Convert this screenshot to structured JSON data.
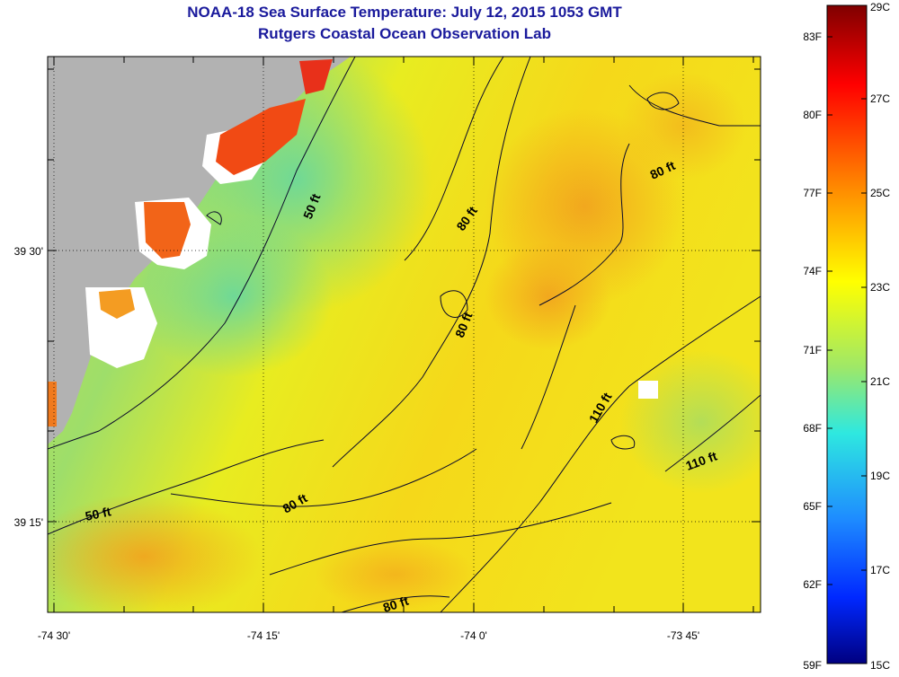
{
  "title": "NOAA-18 Sea Surface Temperature:  July 12, 2015 1053 GMT",
  "subtitle": "Rutgers Coastal Ocean Observation Lab",
  "map": {
    "lat_labels": [
      "39 30'",
      "39 15'"
    ],
    "lon_labels": [
      "-74 30'",
      "-74 15'",
      "-74 0'",
      "-73 45'"
    ],
    "contour_labels": [
      "50 ft",
      "80 ft",
      "80 ft",
      "80 ft",
      "80 ft",
      "110 ft",
      "110 ft",
      "50 ft",
      "80 ft"
    ],
    "land_color": "#b2b2b2"
  },
  "colorbar": {
    "fahrenheit_labels": [
      "83F",
      "80F",
      "77F",
      "74F",
      "71F",
      "68F",
      "65F",
      "62F",
      "59F"
    ],
    "celsius_labels": [
      "29C",
      "27C",
      "25C",
      "23C",
      "21C",
      "19C",
      "17C",
      "15C"
    ]
  }
}
